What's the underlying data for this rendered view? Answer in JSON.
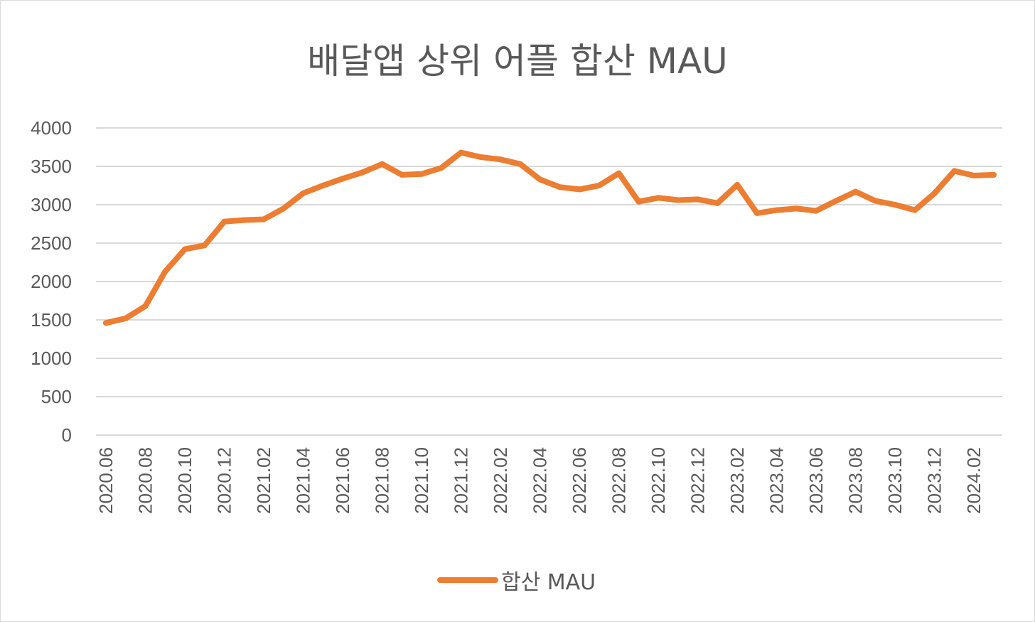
{
  "chart_data": {
    "type": "line",
    "title": "배달앱 상위 어플 합산 MAU",
    "xlabel": "",
    "ylabel": "",
    "ylim": [
      0,
      4000
    ],
    "yticks": [
      "0",
      "500",
      "1000",
      "1500",
      "2000",
      "2500",
      "3000",
      "3500",
      "4000"
    ],
    "grid": true,
    "legend_position": "bottom",
    "x": [
      "2020.06",
      "2020.07",
      "2020.08",
      "2020.09",
      "2020.10",
      "2020.11",
      "2020.12",
      "2021.01",
      "2021.02",
      "2021.03",
      "2021.04",
      "2021.05",
      "2021.06",
      "2021.07",
      "2021.08",
      "2021.09",
      "2021.10",
      "2021.11",
      "2021.12",
      "2022.01",
      "2022.02",
      "2022.03",
      "2022.04",
      "2022.05",
      "2022.06",
      "2022.07",
      "2022.08",
      "2022.09",
      "2022.10",
      "2022.11",
      "2022.12",
      "2023.01",
      "2023.02",
      "2023.03",
      "2023.04",
      "2023.05",
      "2023.06",
      "2023.07",
      "2023.08",
      "2023.09",
      "2023.10",
      "2023.11",
      "2023.12",
      "2024.01",
      "2024.02",
      "2024.03"
    ],
    "xtick_labels": [
      "2020.06",
      "2020.08",
      "2020.10",
      "2020.12",
      "2021.02",
      "2021.04",
      "2021.06",
      "2021.08",
      "2021.10",
      "2021.12",
      "2022.02",
      "2022.04",
      "2022.06",
      "2022.08",
      "2022.10",
      "2022.12",
      "2023.02",
      "2023.04",
      "2023.06",
      "2023.08",
      "2023.10",
      "2023.12",
      "2024.02"
    ],
    "series": [
      {
        "name": "합산 MAU",
        "color": "#ed7d31",
        "values": [
          1460,
          1520,
          1680,
          2130,
          2420,
          2470,
          2780,
          2800,
          2810,
          2950,
          3150,
          3250,
          3340,
          3420,
          3530,
          3390,
          3400,
          3480,
          3680,
          3620,
          3590,
          3530,
          3330,
          3230,
          3200,
          3250,
          3410,
          3040,
          3090,
          3060,
          3070,
          3020,
          3260,
          2890,
          2930,
          2950,
          2920,
          3050,
          3170,
          3050,
          3000,
          2930,
          3150,
          3440,
          3380,
          3390
        ]
      }
    ]
  }
}
